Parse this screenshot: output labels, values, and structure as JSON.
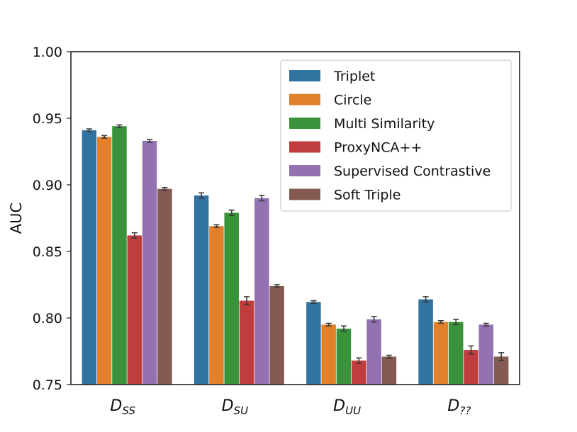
{
  "chart_data": {
    "type": "bar",
    "title": "",
    "xlabel": "",
    "ylabel": "AUC",
    "ylim": [
      0.75,
      1.0
    ],
    "yticks": [
      "0.75",
      "0.80",
      "0.85",
      "0.90",
      "0.95",
      "1.00"
    ],
    "categories": [
      {
        "main": "D",
        "sub": "SS"
      },
      {
        "main": "D",
        "sub": "SU"
      },
      {
        "main": "D",
        "sub": "UU"
      },
      {
        "main": "D",
        "sub": "??"
      }
    ],
    "legend_position": "top-right",
    "series": [
      {
        "name": "Triplet",
        "color": "#3274a1",
        "values": [
          0.941,
          0.892,
          0.812,
          0.814
        ],
        "errors": [
          0.001,
          0.002,
          0.001,
          0.002
        ]
      },
      {
        "name": "Circle",
        "color": "#e1812c",
        "values": [
          0.936,
          0.869,
          0.795,
          0.797
        ],
        "errors": [
          0.001,
          0.001,
          0.001,
          0.001
        ]
      },
      {
        "name": "Multi Similarity",
        "color": "#3a923a",
        "values": [
          0.944,
          0.879,
          0.792,
          0.797
        ],
        "errors": [
          0.001,
          0.002,
          0.002,
          0.002
        ]
      },
      {
        "name": "ProxyNCA++",
        "color": "#c03d3e",
        "values": [
          0.862,
          0.813,
          0.768,
          0.776
        ],
        "errors": [
          0.002,
          0.003,
          0.002,
          0.003
        ]
      },
      {
        "name": "Supervised Contrastive",
        "color": "#9372b2",
        "values": [
          0.933,
          0.89,
          0.799,
          0.795
        ],
        "errors": [
          0.001,
          0.002,
          0.002,
          0.001
        ]
      },
      {
        "name": "Soft Triple",
        "color": "#845b53",
        "values": [
          0.897,
          0.824,
          0.771,
          0.771
        ],
        "errors": [
          0.001,
          0.001,
          0.001,
          0.003
        ]
      }
    ]
  }
}
